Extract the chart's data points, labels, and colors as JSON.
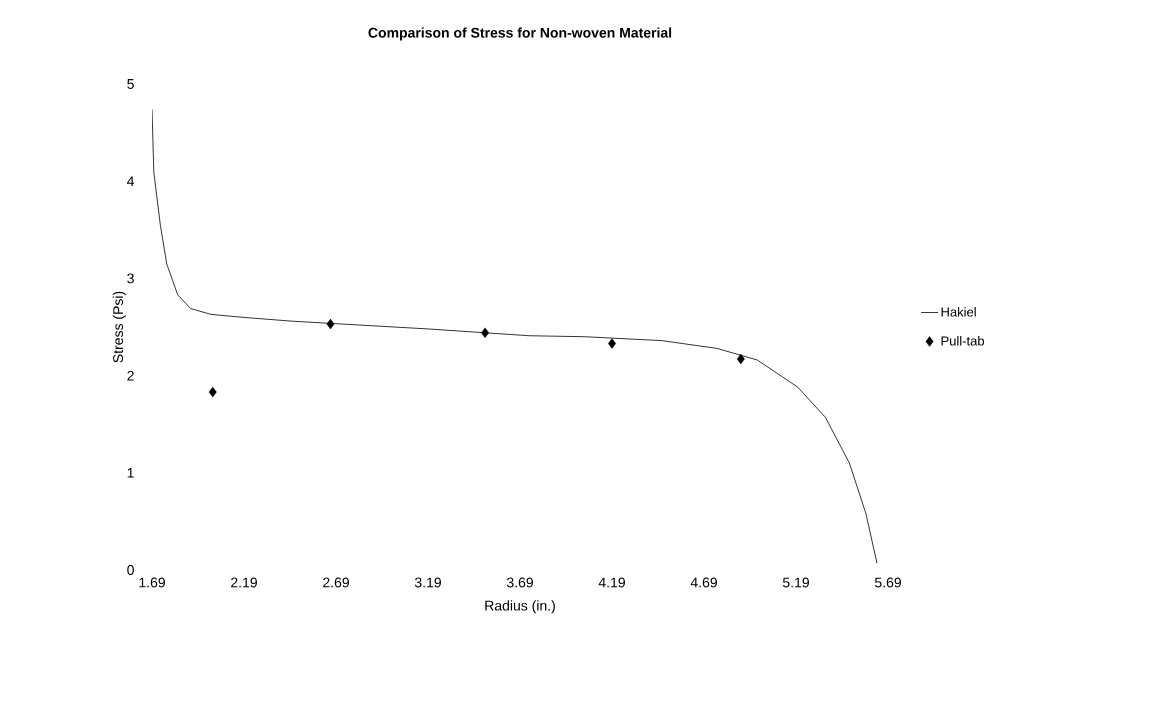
{
  "chart_data": {
    "type": "line",
    "title": "Comparison of Stress for Non-woven Material",
    "xlabel": "Radius (in.)",
    "ylabel": "Stress (Psi)",
    "xlim": [
      1.69,
      5.69
    ],
    "xticks": [
      1.69,
      2.19,
      2.69,
      3.19,
      3.69,
      4.19,
      4.69,
      5.19,
      5.69
    ],
    "ylim": [
      0,
      5
    ],
    "yticks": [
      0,
      1,
      2,
      3,
      4,
      5
    ],
    "grid": false,
    "legend": "right",
    "series": [
      {
        "name": "Hakiel",
        "marker": "none",
        "line_style": "solid",
        "color": "#000000",
        "x": [
          1.69,
          1.7,
          1.736,
          1.77,
          1.83,
          1.9,
          2.01,
          2.18,
          2.45,
          2.82,
          3.19,
          3.74,
          4.04,
          4.46,
          4.76,
          4.98,
          5.2,
          5.35,
          5.48,
          5.57,
          5.63
        ],
        "values": [
          4.74,
          4.09,
          3.54,
          3.15,
          2.83,
          2.69,
          2.63,
          2.6,
          2.56,
          2.52,
          2.48,
          2.41,
          2.4,
          2.36,
          2.28,
          2.16,
          1.88,
          1.57,
          1.1,
          0.58,
          0.07
        ]
      },
      {
        "name": "Pull-tab",
        "type": "scatter",
        "marker": "diamond",
        "color": "#000000",
        "x": [
          2.02,
          2.66,
          3.5,
          4.19,
          4.89
        ],
        "values": [
          1.83,
          2.53,
          2.44,
          2.33,
          2.17
        ]
      }
    ]
  }
}
